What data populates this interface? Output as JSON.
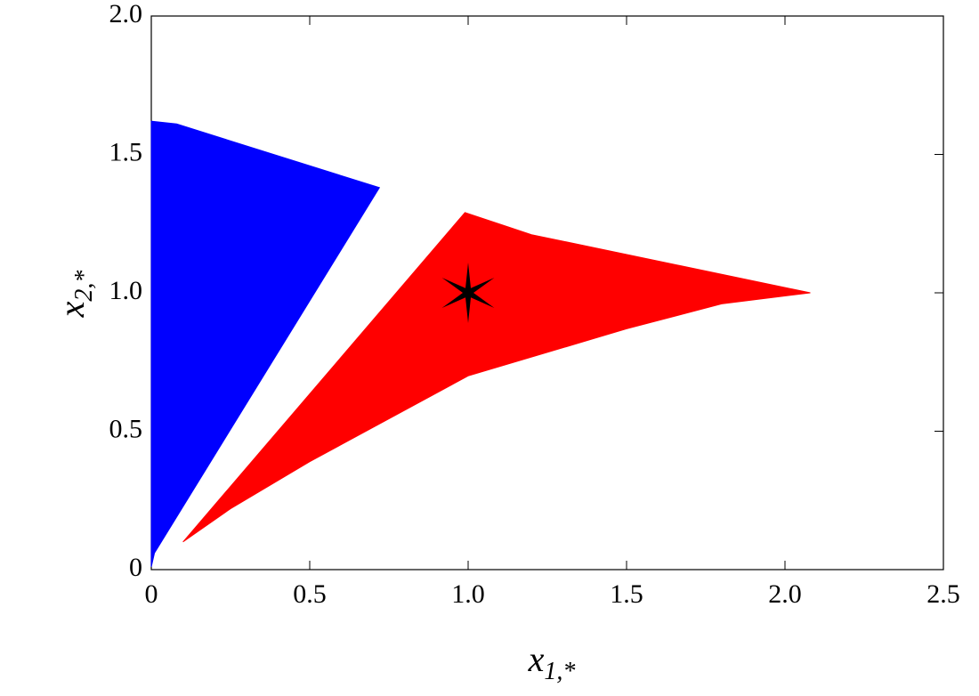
{
  "chart_data": {
    "type": "scatter",
    "xlabel": {
      "base": "x",
      "sub": "1,*"
    },
    "ylabel": {
      "base": "x",
      "sub": "2,*"
    },
    "xlim": [
      0,
      2.5
    ],
    "ylim": [
      0,
      2.0
    ],
    "xticks": [
      0,
      0.5,
      {
        "value": 1,
        "label": "1.0"
      },
      1.5,
      {
        "value": 2,
        "label": "2.0"
      },
      2.5
    ],
    "yticks": [
      0,
      0.5,
      {
        "value": 1,
        "label": "1.0"
      },
      1.5,
      {
        "value": 2,
        "label": "2.0"
      }
    ],
    "series": [
      {
        "marker": "region",
        "color": "#0000ff",
        "x": [
          0,
          0,
          0.08,
          0.72,
          0.01
        ],
        "y": [
          0.01,
          1.62,
          1.61,
          1.38,
          0.06
        ]
      },
      {
        "marker": "region",
        "color": "#ff0000",
        "x": [
          0.1,
          0.99,
          1.2,
          2.08,
          1.8,
          1.5,
          1.0,
          0.5,
          0.25
        ],
        "y": [
          0.1,
          1.29,
          1.21,
          1.0,
          0.96,
          0.87,
          0.7,
          0.39,
          0.22
        ]
      },
      {
        "marker": "star",
        "color": "#000000",
        "x": [
          1
        ],
        "y": [
          1
        ]
      }
    ]
  }
}
